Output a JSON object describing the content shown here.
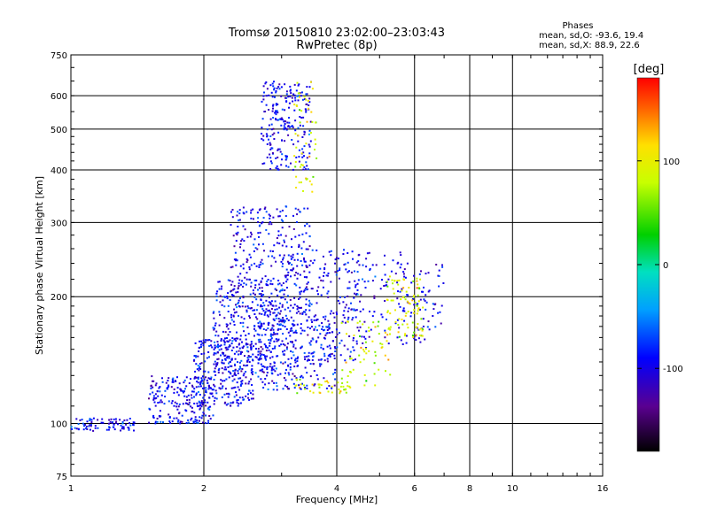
{
  "chart_data": {
    "type": "scatter",
    "title": "Tromsø 20150810 23:02:00–23:03:43",
    "subtitle": "RwPretec (8p)",
    "xlabel": "Frequency [MHz]",
    "ylabel": "Stationary phase Virtual Height [km]",
    "x_scale": "log",
    "y_scale": "log",
    "xlim": [
      1,
      16
    ],
    "ylim": [
      75,
      750
    ],
    "x_ticks": [
      1,
      2,
      4,
      6,
      8,
      10,
      16
    ],
    "x_tick_labels": [
      "1",
      "2",
      "4",
      "6",
      "8",
      "10",
      "16"
    ],
    "y_ticks": [
      75,
      100,
      200,
      300,
      400,
      500,
      600,
      750
    ],
    "y_tick_labels": [
      "75",
      "100",
      "200",
      "300",
      "400",
      "500",
      "600",
      "750"
    ],
    "grid": true,
    "colorbar": {
      "label": "[deg]",
      "min": -180,
      "max": 180,
      "ticks": [
        100,
        0,
        -100
      ],
      "tick_labels": [
        "100",
        "0",
        "-100"
      ]
    },
    "stats": {
      "header": "Phases",
      "line_o": "mean, sd,O: -93.6, 19.4",
      "line_x": "mean, sd,X:  88.9, 22.6"
    },
    "series": [
      {
        "color_deg": -93.6,
        "sd_deg": 19.4,
        "clusters": [
          {
            "f": [
              1.0,
              1.4
            ],
            "h": [
              96,
              103
            ],
            "n": 80
          },
          {
            "f": [
              1.5,
              2.1
            ],
            "h": [
              100,
              130
            ],
            "n": 220
          },
          {
            "f": [
              1.9,
              2.6
            ],
            "h": [
              110,
              160
            ],
            "n": 260
          },
          {
            "f": [
              2.1,
              3.0
            ],
            "h": [
              130,
              220
            ],
            "n": 300
          },
          {
            "f": [
              2.3,
              3.5
            ],
            "h": [
              180,
              330
            ],
            "n": 300
          },
          {
            "f": [
              2.6,
              4.0
            ],
            "h": [
              120,
              180
            ],
            "n": 250
          },
          {
            "f": [
              3.0,
              4.5
            ],
            "h": [
              140,
              260
            ],
            "n": 200
          },
          {
            "f": [
              2.7,
              3.5
            ],
            "h": [
              400,
              650
            ],
            "n": 230
          },
          {
            "f": [
              3.8,
              5.8
            ],
            "h": [
              150,
              260
            ],
            "n": 120
          },
          {
            "f": [
              5.5,
              7.0
            ],
            "h": [
              155,
              240
            ],
            "n": 70
          }
        ]
      },
      {
        "color_deg": 88.9,
        "sd_deg": 22.6,
        "clusters": [
          {
            "f": [
              4.1,
              5.3
            ],
            "h": [
              120,
              175
            ],
            "n": 60
          },
          {
            "f": [
              5.2,
              6.3
            ],
            "h": [
              160,
              225
            ],
            "n": 90
          },
          {
            "f": [
              3.2,
              4.3
            ],
            "h": [
              118,
              128
            ],
            "n": 40
          },
          {
            "f": [
              3.2,
              3.6
            ],
            "h": [
              350,
              650
            ],
            "n": 50
          }
        ]
      }
    ]
  }
}
